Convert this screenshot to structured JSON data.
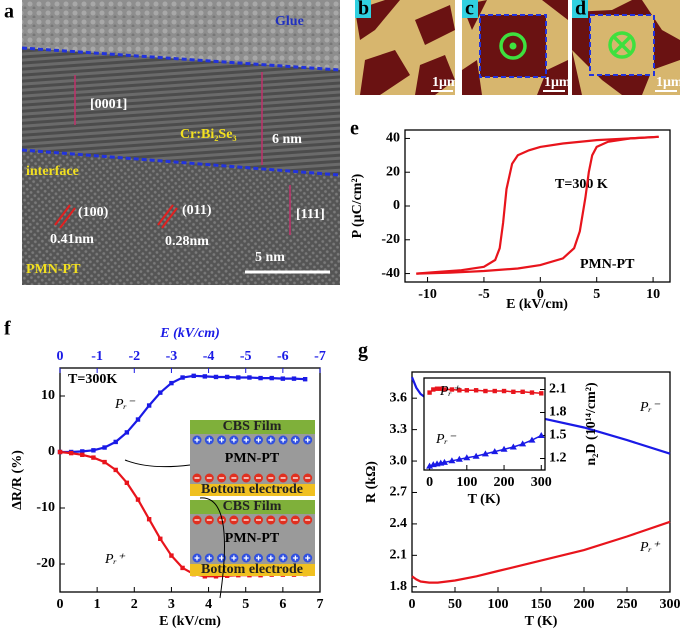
{
  "panel_a": {
    "label": "a",
    "texts": [
      "Glue",
      "[0001]",
      "Cr:Bi₂Se₃",
      "6 nm",
      "interface",
      "(100)",
      "0.41nm",
      "(011)",
      "0.28nm",
      "[111]",
      "PMN-PT",
      "5 nm"
    ]
  },
  "panels_bcd": [
    {
      "label": "b",
      "scale": "1μm"
    },
    {
      "label": "c",
      "scale": "1μm"
    },
    {
      "label": "d",
      "scale": "1μm"
    }
  ],
  "chart_data": [
    {
      "type": "line",
      "label": "e",
      "xlabel": "E (kV/cm)",
      "ylabel": "P (μC/cm²)",
      "annotations": [
        "T=300 K",
        "PMN-PT"
      ],
      "xlim": [
        -12,
        11.5
      ],
      "xticks": [
        -10,
        -5,
        0,
        5,
        10
      ],
      "ylim": [
        -45,
        45
      ],
      "yticks": [
        -40,
        -20,
        0,
        20,
        40
      ],
      "markers": false,
      "series": [
        {
          "color": "#e8141c",
          "x": [
            10.5,
            8,
            5,
            2,
            0,
            -1,
            -2,
            -2.5,
            -3,
            -3.3,
            -3.6,
            -4,
            -5,
            -7,
            -9,
            -11
          ],
          "values": [
            41,
            40,
            39,
            37,
            35,
            33,
            30,
            25,
            10,
            -10,
            -25,
            -32,
            -36,
            -38,
            -39,
            -40
          ]
        },
        {
          "color": "#e8141c",
          "x": [
            -11,
            -8,
            -5,
            -2,
            0,
            2,
            3,
            3.5,
            4,
            4.3,
            4.6,
            5,
            6,
            8,
            10.5
          ],
          "values": [
            -40,
            -39.5,
            -38.5,
            -37,
            -35,
            -31,
            -25,
            -15,
            5,
            20,
            30,
            35,
            38,
            40,
            41
          ]
        }
      ]
    },
    {
      "type": "line",
      "label": "f",
      "xlabel": "E (kV/cm)",
      "ylabel": "ΔR/R (%)",
      "x2label": "E (kV/cm)",
      "annotations": [
        "T=300K"
      ],
      "xlim": [
        0,
        7
      ],
      "xticks": [
        0,
        1,
        2,
        3,
        4,
        5,
        6,
        7
      ],
      "x2lim": [
        0,
        -7
      ],
      "x2ticks": [
        0,
        -1,
        -2,
        -3,
        -4,
        -5,
        -6,
        -7
      ],
      "ylim": [
        -25,
        15
      ],
      "yticks": [
        -20,
        -10,
        0,
        10
      ],
      "markers": true,
      "diagrams": [
        {
          "labels": [
            "CBS Film",
            "PMN-PT",
            "Bottom electrode"
          ]
        },
        {
          "labels": [
            "CBS Film",
            "PMN-PT",
            "Bottom electrode"
          ]
        }
      ],
      "series": [
        {
          "name": "Pᵣ⁻",
          "color": "#1a1ae6",
          "marker": "square",
          "x": [
            0,
            0.3,
            0.6,
            0.9,
            1.2,
            1.5,
            1.8,
            2.1,
            2.4,
            2.7,
            3.0,
            3.3,
            3.6,
            3.9,
            4.2,
            4.5,
            4.8,
            5.1,
            5.4,
            5.7,
            6.0,
            6.3,
            6.6
          ],
          "values": [
            0,
            0,
            0.1,
            0.3,
            0.8,
            1.8,
            3.5,
            5.8,
            8.3,
            10.6,
            12.3,
            13.3,
            13.6,
            13.5,
            13.4,
            13.4,
            13.3,
            13.3,
            13.2,
            13.2,
            13.1,
            13.1,
            13.0
          ]
        },
        {
          "name": "Pᵣ⁺",
          "color": "#e8141c",
          "marker": "square",
          "x": [
            0,
            0.3,
            0.6,
            0.9,
            1.2,
            1.5,
            1.8,
            2.1,
            2.4,
            2.7,
            3.0,
            3.3,
            3.6,
            3.9,
            4.2,
            4.5,
            4.8,
            5.1,
            5.4,
            5.7,
            6.0,
            6.3,
            6.6
          ],
          "values": [
            0,
            -0.2,
            -0.5,
            -1,
            -1.8,
            -3.2,
            -5.5,
            -8.5,
            -12,
            -15.5,
            -18.5,
            -20.7,
            -21.8,
            -22.2,
            -22.2,
            -22.1,
            -22,
            -22,
            -22,
            -21.9,
            -21.9,
            -21.9,
            -21.8
          ]
        }
      ]
    },
    {
      "type": "line",
      "label": "g",
      "xlabel": "T (K)",
      "ylabel": "R (kΩ)",
      "xlim": [
        0,
        300
      ],
      "xticks": [
        0,
        50,
        100,
        150,
        200,
        250,
        300
      ],
      "ylim": [
        1.75,
        3.85
      ],
      "yticks": [
        1.8,
        2.1,
        2.4,
        2.7,
        {
          "value": 3,
          "label": "3.0"
        },
        3.3,
        3.6
      ],
      "markers": false,
      "series": [
        {
          "name": "Pᵣ⁻",
          "color": "#1a1ae6",
          "x": [
            0,
            5,
            10,
            20,
            30,
            50,
            75,
            100,
            150,
            200,
            250,
            300
          ],
          "values": [
            3.8,
            3.7,
            3.64,
            3.58,
            3.55,
            3.51,
            3.48,
            3.46,
            3.41,
            3.32,
            3.2,
            3.07
          ]
        },
        {
          "name": "Pᵣ⁺",
          "color": "#e8141c",
          "x": [
            0,
            5,
            10,
            20,
            30,
            50,
            75,
            100,
            150,
            200,
            250,
            300
          ],
          "values": [
            1.9,
            1.87,
            1.85,
            1.84,
            1.84,
            1.86,
            1.9,
            1.95,
            2.05,
            2.15,
            2.28,
            2.42
          ]
        }
      ]
    },
    {
      "type": "line",
      "xlabel": "T (K)",
      "ylabel": "n₂D (10¹⁴/cm²)",
      "y_axis_side": "right",
      "xlim": [
        -15,
        310
      ],
      "xticks": [
        0,
        100,
        200,
        300
      ],
      "ylim": [
        1.05,
        2.25
      ],
      "yticks": [
        1.2,
        1.5,
        1.8,
        2.1
      ],
      "markers": true,
      "series": [
        {
          "name": "Pᵣ⁺",
          "color": "#e8141c",
          "marker": "square",
          "x": [
            0,
            10,
            20,
            30,
            40,
            60,
            80,
            100,
            125,
            150,
            175,
            200,
            225,
            250,
            275,
            300
          ],
          "values": [
            2.06,
            2.1,
            2.11,
            2.11,
            2.1,
            2.1,
            2.09,
            2.09,
            2.09,
            2.08,
            2.08,
            2.08,
            2.07,
            2.07,
            2.06,
            2.05
          ]
        },
        {
          "name": "Pᵣ⁻",
          "color": "#1a1ae6",
          "marker": "triangle",
          "x": [
            0,
            10,
            20,
            30,
            40,
            60,
            80,
            100,
            125,
            150,
            175,
            200,
            225,
            250,
            275,
            300
          ],
          "values": [
            1.1,
            1.12,
            1.13,
            1.14,
            1.15,
            1.17,
            1.19,
            1.21,
            1.23,
            1.26,
            1.29,
            1.32,
            1.35,
            1.39,
            1.44,
            1.5
          ]
        }
      ]
    }
  ]
}
